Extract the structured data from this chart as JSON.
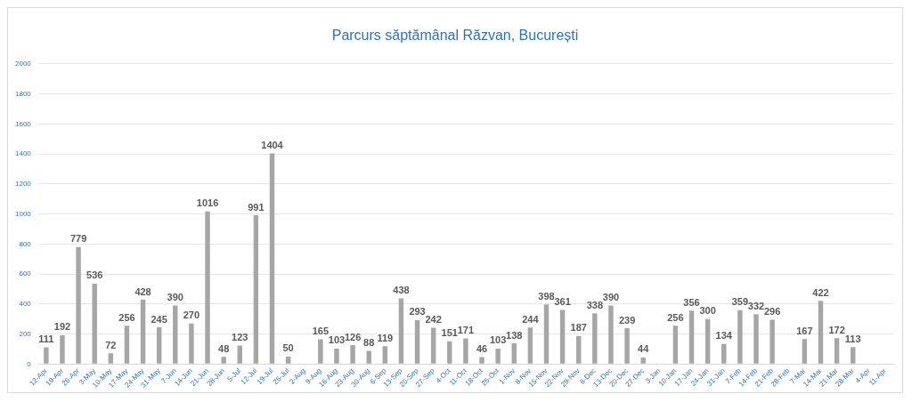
{
  "chart_data": {
    "type": "bar",
    "title": "Parcurs săptămânal Răzvan, București",
    "categories": [
      "12-Apr",
      "19-Apr",
      "26-Apr",
      "3-May",
      "10-May",
      "17-May",
      "24-May",
      "31-May",
      "7-Jun",
      "14-Jun",
      "21-Jun",
      "28-Jun",
      "5-Jul",
      "12-Jul",
      "19-Jul",
      "26-Jul",
      "2-Aug",
      "9-Aug",
      "16-Aug",
      "23-Aug",
      "30-Aug",
      "6-Sep",
      "13-Sep",
      "20-Sep",
      "27-Sep",
      "4-Oct",
      "11-Oct",
      "18-Oct",
      "25-Oct",
      "1-Nov",
      "8-Nov",
      "15-Nov",
      "22-Nov",
      "29-Nov",
      "6-Dec",
      "13-Dec",
      "20-Dec",
      "27-Dec",
      "3-Jan",
      "10-Jan",
      "17-Jan",
      "24-Jan",
      "31-Jan",
      "7-Feb",
      "14-Feb",
      "21-Feb",
      "28-Feb",
      "7-Mar",
      "14-Mar",
      "21-Mar",
      "28-Mar",
      "4-Apr",
      "11-Apr"
    ],
    "values": [
      111,
      192,
      779,
      536,
      72,
      256,
      428,
      245,
      390,
      270,
      1016,
      48,
      123,
      991,
      1404,
      50,
      null,
      165,
      103,
      126,
      88,
      119,
      438,
      293,
      242,
      151,
      171,
      46,
      103,
      138,
      244,
      398,
      361,
      187,
      338,
      390,
      239,
      44,
      null,
      256,
      356,
      300,
      134,
      359,
      332,
      296,
      null,
      167,
      422,
      172,
      113,
      null,
      null
    ],
    "color": "#a6a6a6",
    "ylim": [
      0,
      2000
    ],
    "yticks": [
      0,
      200,
      400,
      600,
      800,
      1000,
      1200,
      1400,
      1600,
      1800,
      2000
    ],
    "grid": "y",
    "data_labels": true
  }
}
